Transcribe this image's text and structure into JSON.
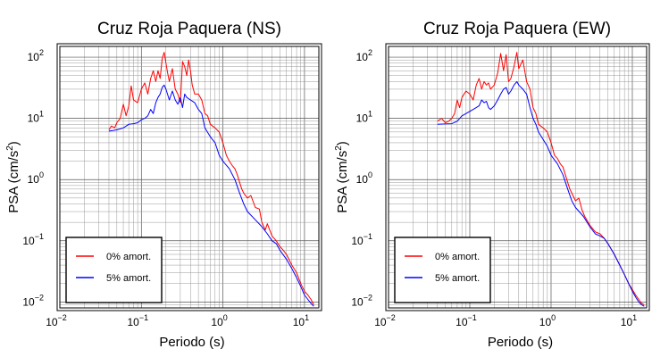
{
  "chart_data": [
    {
      "type": "line",
      "title": "Cruz Roja Paquera (NS)",
      "xlabel": "Periodo (s)",
      "ylabel_main": "PSA (cm/s",
      "ylabel_sup": "2",
      "ylabel_close": ")",
      "xscale": "log",
      "yscale": "log",
      "xlim": [
        0.01,
        15
      ],
      "ylim": [
        0.008,
        150
      ],
      "grid": true,
      "legend_position": "lower-left",
      "x_ticks": [
        {
          "value": 0.01,
          "base": "10",
          "exp": "−2"
        },
        {
          "value": 0.1,
          "base": "10",
          "exp": "−1"
        },
        {
          "value": 1,
          "base": "10",
          "exp": "0"
        },
        {
          "value": 10,
          "base": "10",
          "exp": "1"
        }
      ],
      "y_ticks": [
        {
          "value": 0.01,
          "base": "10",
          "exp": "−2"
        },
        {
          "value": 0.1,
          "base": "10",
          "exp": "−1"
        },
        {
          "value": 1,
          "base": "10",
          "exp": "0"
        },
        {
          "value": 10,
          "base": "10",
          "exp": "1"
        },
        {
          "value": 100,
          "base": "10",
          "exp": "2"
        }
      ],
      "series": [
        {
          "name": "0% amort.",
          "color": "#ff0000",
          "points": [
            [
              0.04,
              6.5
            ],
            [
              0.043,
              7.5
            ],
            [
              0.047,
              7.0
            ],
            [
              0.05,
              8.5
            ],
            [
              0.055,
              10
            ],
            [
              0.06,
              17
            ],
            [
              0.065,
              11
            ],
            [
              0.07,
              16
            ],
            [
              0.075,
              34
            ],
            [
              0.08,
              20
            ],
            [
              0.09,
              18
            ],
            [
              0.1,
              30
            ],
            [
              0.11,
              38
            ],
            [
              0.12,
              25
            ],
            [
              0.13,
              45
            ],
            [
              0.14,
              60
            ],
            [
              0.15,
              40
            ],
            [
              0.16,
              60
            ],
            [
              0.17,
              45
            ],
            [
              0.18,
              95
            ],
            [
              0.19,
              120
            ],
            [
              0.2,
              80
            ],
            [
              0.21,
              55
            ],
            [
              0.22,
              40
            ],
            [
              0.24,
              65
            ],
            [
              0.26,
              30
            ],
            [
              0.28,
              25
            ],
            [
              0.3,
              18
            ],
            [
              0.32,
              85
            ],
            [
              0.34,
              70
            ],
            [
              0.36,
              50
            ],
            [
              0.38,
              90
            ],
            [
              0.4,
              60
            ],
            [
              0.42,
              35
            ],
            [
              0.45,
              25
            ],
            [
              0.5,
              25
            ],
            [
              0.55,
              20
            ],
            [
              0.6,
              12
            ],
            [
              0.65,
              11
            ],
            [
              0.7,
              8
            ],
            [
              0.8,
              7
            ],
            [
              0.9,
              6
            ],
            [
              1.0,
              4
            ],
            [
              1.1,
              2.5
            ],
            [
              1.2,
              2.0
            ],
            [
              1.3,
              1.7
            ],
            [
              1.4,
              1.5
            ],
            [
              1.5,
              1.2
            ],
            [
              1.6,
              0.9
            ],
            [
              1.7,
              0.7
            ],
            [
              1.8,
              0.6
            ],
            [
              2.0,
              0.5
            ],
            [
              2.2,
              0.55
            ],
            [
              2.5,
              0.35
            ],
            [
              2.8,
              0.33
            ],
            [
              3.0,
              0.2
            ],
            [
              3.3,
              0.15
            ],
            [
              3.5,
              0.19
            ],
            [
              4.0,
              0.12
            ],
            [
              4.5,
              0.1
            ],
            [
              5.0,
              0.08
            ],
            [
              5.5,
              0.07
            ],
            [
              6.0,
              0.06
            ],
            [
              7.0,
              0.04
            ],
            [
              8.0,
              0.03
            ],
            [
              9.0,
              0.02
            ],
            [
              10,
              0.015
            ],
            [
              11,
              0.013
            ],
            [
              12,
              0.011
            ],
            [
              13,
              0.009
            ]
          ]
        },
        {
          "name": "5% amort.",
          "color": "#0000ff",
          "points": [
            [
              0.04,
              6.2
            ],
            [
              0.05,
              6.5
            ],
            [
              0.06,
              7.0
            ],
            [
              0.07,
              8.0
            ],
            [
              0.08,
              8.2
            ],
            [
              0.09,
              8.5
            ],
            [
              0.1,
              9.5
            ],
            [
              0.11,
              10
            ],
            [
              0.12,
              11
            ],
            [
              0.13,
              14
            ],
            [
              0.14,
              12
            ],
            [
              0.15,
              18
            ],
            [
              0.16,
              22
            ],
            [
              0.17,
              25
            ],
            [
              0.18,
              32
            ],
            [
              0.19,
              35
            ],
            [
              0.2,
              30
            ],
            [
              0.22,
              20
            ],
            [
              0.24,
              28
            ],
            [
              0.26,
              20
            ],
            [
              0.28,
              17
            ],
            [
              0.3,
              22
            ],
            [
              0.32,
              15
            ],
            [
              0.34,
              25
            ],
            [
              0.36,
              22
            ],
            [
              0.4,
              20
            ],
            [
              0.45,
              18
            ],
            [
              0.5,
              14
            ],
            [
              0.55,
              12
            ],
            [
              0.6,
              7
            ],
            [
              0.7,
              5
            ],
            [
              0.8,
              4
            ],
            [
              0.9,
              2.5
            ],
            [
              1.0,
              2.0
            ],
            [
              1.2,
              1.5
            ],
            [
              1.4,
              1.0
            ],
            [
              1.6,
              0.6
            ],
            [
              1.8,
              0.4
            ],
            [
              2.0,
              0.3
            ],
            [
              2.5,
              0.22
            ],
            [
              3.0,
              0.17
            ],
            [
              3.5,
              0.13
            ],
            [
              4.0,
              0.1
            ],
            [
              4.5,
              0.09
            ],
            [
              5.0,
              0.07
            ],
            [
              6.0,
              0.05
            ],
            [
              7.0,
              0.035
            ],
            [
              8.0,
              0.025
            ],
            [
              9.0,
              0.018
            ],
            [
              10,
              0.013
            ],
            [
              11,
              0.011
            ],
            [
              12,
              0.0095
            ],
            [
              13,
              0.0085
            ]
          ]
        }
      ]
    },
    {
      "type": "line",
      "title": "Cruz Roja Paquera (EW)",
      "xlabel": "Periodo (s)",
      "ylabel_main": "PSA (cm/s",
      "ylabel_sup": "2",
      "ylabel_close": ")",
      "xscale": "log",
      "yscale": "log",
      "xlim": [
        0.01,
        15
      ],
      "ylim": [
        0.008,
        150
      ],
      "grid": true,
      "legend_position": "lower-left",
      "x_ticks": [
        {
          "value": 0.01,
          "base": "10",
          "exp": "−2"
        },
        {
          "value": 0.1,
          "base": "10",
          "exp": "−1"
        },
        {
          "value": 1,
          "base": "10",
          "exp": "0"
        },
        {
          "value": 10,
          "base": "10",
          "exp": "1"
        }
      ],
      "y_ticks": [
        {
          "value": 0.01,
          "base": "10",
          "exp": "−2"
        },
        {
          "value": 0.1,
          "base": "10",
          "exp": "−1"
        },
        {
          "value": 1,
          "base": "10",
          "exp": "0"
        },
        {
          "value": 10,
          "base": "10",
          "exp": "1"
        },
        {
          "value": 100,
          "base": "10",
          "exp": "2"
        }
      ],
      "series": [
        {
          "name": "0% amort.",
          "color": "#ff0000",
          "points": [
            [
              0.04,
              9
            ],
            [
              0.045,
              10
            ],
            [
              0.05,
              8.5
            ],
            [
              0.055,
              9
            ],
            [
              0.06,
              10
            ],
            [
              0.065,
              12
            ],
            [
              0.07,
              20
            ],
            [
              0.075,
              15
            ],
            [
              0.08,
              22
            ],
            [
              0.09,
              28
            ],
            [
              0.1,
              25
            ],
            [
              0.11,
              20
            ],
            [
              0.12,
              35
            ],
            [
              0.13,
              45
            ],
            [
              0.14,
              30
            ],
            [
              0.15,
              40
            ],
            [
              0.16,
              35
            ],
            [
              0.17,
              38
            ],
            [
              0.18,
              30
            ],
            [
              0.2,
              35
            ],
            [
              0.22,
              55
            ],
            [
              0.24,
              115
            ],
            [
              0.26,
              60
            ],
            [
              0.28,
              110
            ],
            [
              0.3,
              40
            ],
            [
              0.32,
              45
            ],
            [
              0.35,
              70
            ],
            [
              0.38,
              120
            ],
            [
              0.4,
              65
            ],
            [
              0.45,
              90
            ],
            [
              0.5,
              40
            ],
            [
              0.55,
              30
            ],
            [
              0.6,
              15
            ],
            [
              0.65,
              12
            ],
            [
              0.7,
              8
            ],
            [
              0.8,
              7
            ],
            [
              0.9,
              6
            ],
            [
              1.0,
              4
            ],
            [
              1.1,
              2.5
            ],
            [
              1.2,
              2.2
            ],
            [
              1.3,
              1.8
            ],
            [
              1.4,
              1.6
            ],
            [
              1.5,
              1.2
            ],
            [
              1.6,
              0.9
            ],
            [
              1.7,
              0.7
            ],
            [
              1.8,
              0.6
            ],
            [
              2.0,
              0.45
            ],
            [
              2.2,
              0.5
            ],
            [
              2.4,
              0.32
            ],
            [
              2.6,
              0.25
            ],
            [
              3.0,
              0.18
            ],
            [
              3.5,
              0.14
            ],
            [
              4.0,
              0.13
            ],
            [
              4.5,
              0.11
            ],
            [
              5.0,
              0.09
            ],
            [
              6.0,
              0.06
            ],
            [
              7.0,
              0.04
            ],
            [
              8.0,
              0.028
            ],
            [
              9.0,
              0.02
            ],
            [
              10,
              0.016
            ],
            [
              11,
              0.013
            ],
            [
              12,
              0.011
            ],
            [
              13,
              0.0095
            ],
            [
              14,
              0.009
            ]
          ]
        },
        {
          "name": "5% amort.",
          "color": "#0000ff",
          "points": [
            [
              0.04,
              8.0
            ],
            [
              0.05,
              8.1
            ],
            [
              0.06,
              8.2
            ],
            [
              0.07,
              9.0
            ],
            [
              0.08,
              11
            ],
            [
              0.09,
              12
            ],
            [
              0.1,
              13
            ],
            [
              0.12,
              15
            ],
            [
              0.13,
              16
            ],
            [
              0.14,
              20
            ],
            [
              0.15,
              18
            ],
            [
              0.16,
              19
            ],
            [
              0.17,
              15
            ],
            [
              0.18,
              14
            ],
            [
              0.2,
              16
            ],
            [
              0.22,
              20
            ],
            [
              0.24,
              25
            ],
            [
              0.26,
              30
            ],
            [
              0.28,
              32
            ],
            [
              0.3,
              25
            ],
            [
              0.32,
              28
            ],
            [
              0.35,
              35
            ],
            [
              0.38,
              40
            ],
            [
              0.4,
              35
            ],
            [
              0.45,
              30
            ],
            [
              0.5,
              25
            ],
            [
              0.55,
              15
            ],
            [
              0.6,
              10
            ],
            [
              0.65,
              8
            ],
            [
              0.7,
              6
            ],
            [
              0.8,
              4.5
            ],
            [
              0.9,
              3.5
            ],
            [
              1.0,
              2.5
            ],
            [
              1.2,
              1.8
            ],
            [
              1.4,
              1.2
            ],
            [
              1.6,
              0.7
            ],
            [
              1.8,
              0.45
            ],
            [
              2.0,
              0.35
            ],
            [
              2.5,
              0.25
            ],
            [
              3.0,
              0.17
            ],
            [
              3.5,
              0.13
            ],
            [
              4.0,
              0.12
            ],
            [
              4.5,
              0.11
            ],
            [
              5.0,
              0.09
            ],
            [
              6.0,
              0.06
            ],
            [
              7.0,
              0.04
            ],
            [
              8.0,
              0.028
            ],
            [
              9.0,
              0.02
            ],
            [
              10,
              0.015
            ],
            [
              11,
              0.012
            ],
            [
              12,
              0.01
            ],
            [
              13,
              0.009
            ],
            [
              14,
              0.0085
            ]
          ]
        }
      ]
    }
  ]
}
